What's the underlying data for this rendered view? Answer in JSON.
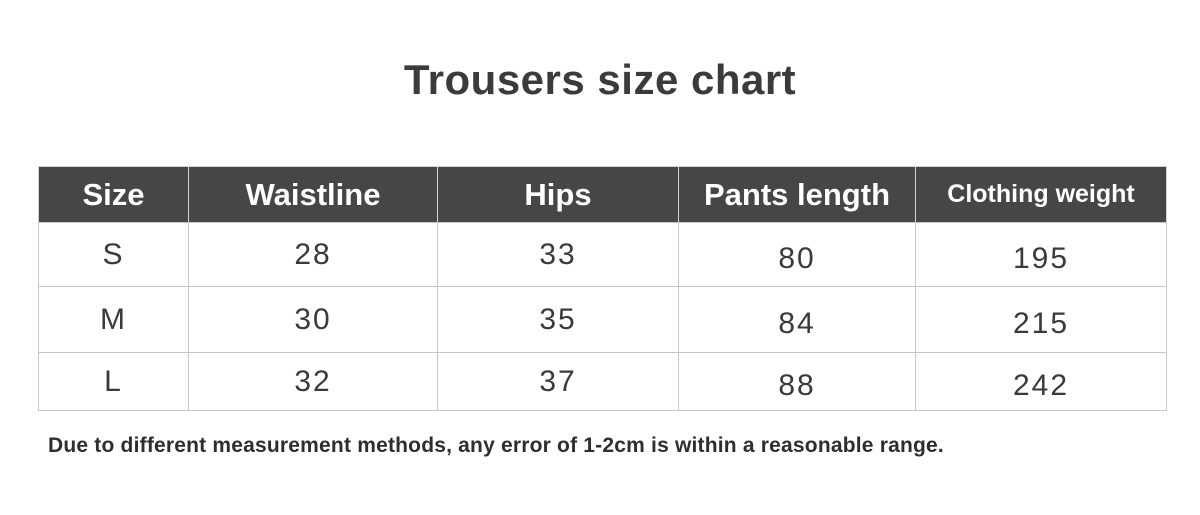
{
  "title": "Trousers size chart",
  "footnote": "Due to different measurement methods, any error of 1-2cm is within a reasonable range.",
  "colors": {
    "page_bg": "#ffffff",
    "title_color": "#3b3b3b",
    "header_bg": "#464646",
    "header_text": "#ffffff",
    "body_text": "#3a3a3a",
    "border_color": "#c6c6c6",
    "footnote_color": "#2e2e2e"
  },
  "chart_data": {
    "type": "table",
    "title": "Trousers size chart",
    "columns": [
      "Size",
      "Waistline",
      "Hips",
      "Pants length",
      "Clothing weight"
    ],
    "rows": [
      [
        "S",
        "28",
        "33",
        "80",
        "195"
      ],
      [
        "M",
        "30",
        "35",
        "84",
        "215"
      ],
      [
        "L",
        "32",
        "37",
        "88",
        "242"
      ]
    ],
    "note": "Due to different measurement methods, any error of 1-2cm is within a reasonable range.",
    "layout_hints": {
      "header_style": "dark band with white bold labels",
      "grid": "light gray 1px lines",
      "alignment": "all cells centered"
    }
  }
}
